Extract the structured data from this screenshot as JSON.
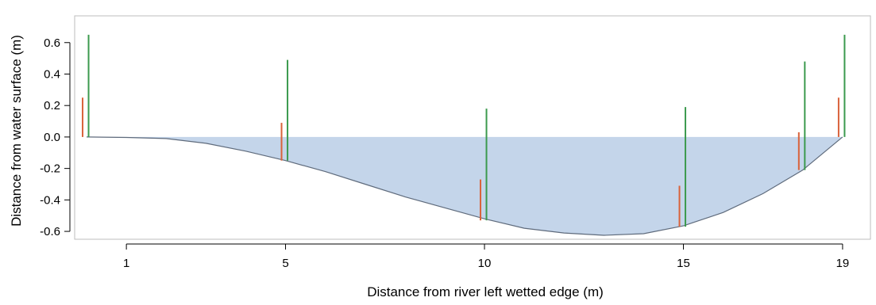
{
  "chart_data": {
    "type": "area",
    "title": "",
    "xlabel": "Distance from river left wetted edge (m)",
    "ylabel": "Distance from water surface (m)",
    "xlim": [
      -0.3,
      19.7
    ],
    "ylim": [
      -0.65,
      0.77
    ],
    "x_ticks": [
      1,
      5,
      10,
      15,
      19
    ],
    "y_ticks": [
      -0.6,
      -0.4,
      -0.2,
      0.0,
      0.2,
      0.4,
      0.6
    ],
    "y_tick_labels": [
      "-0.6",
      "-0.4",
      "-0.2",
      "0.0",
      "0.2",
      "0.4",
      "0.6"
    ],
    "water_level": 0.0,
    "bed_profile": {
      "x": [
        0.0,
        1.0,
        2.0,
        3.0,
        4.0,
        5.0,
        6.0,
        7.0,
        8.0,
        9.0,
        10.0,
        11.0,
        12.0,
        13.0,
        14.0,
        15.0,
        16.0,
        17.0,
        18.0,
        19.0
      ],
      "y": [
        0.0,
        -0.003,
        -0.01,
        -0.04,
        -0.09,
        -0.15,
        -0.22,
        -0.3,
        -0.38,
        -0.45,
        -0.52,
        -0.58,
        -0.61,
        -0.625,
        -0.615,
        -0.565,
        -0.48,
        -0.36,
        -0.21,
        0.0
      ]
    },
    "fill_color": "#c4d5ea",
    "bed_line_color": "#5f6b7c",
    "vertical_markers": [
      {
        "series": "orange",
        "color": "#d9623a",
        "x": [
          -0.1,
          4.9,
          9.9,
          14.9,
          17.9,
          18.9
        ],
        "y_top": [
          0.25,
          0.09,
          -0.27,
          -0.31,
          0.03,
          0.25
        ],
        "y_bottom": [
          0.0,
          -0.15,
          -0.53,
          -0.57,
          -0.21,
          0.0
        ]
      },
      {
        "series": "green",
        "color": "#3c9a4e",
        "x": [
          0.05,
          5.05,
          10.05,
          15.05,
          18.05,
          19.05
        ],
        "y_top": [
          0.65,
          0.49,
          0.18,
          0.19,
          0.48,
          0.65
        ],
        "y_bottom": [
          0.0,
          -0.15,
          -0.53,
          -0.57,
          -0.21,
          0.0
        ]
      }
    ]
  }
}
